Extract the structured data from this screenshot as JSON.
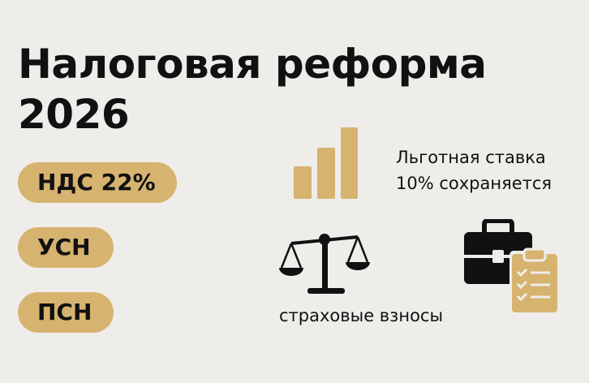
{
  "title_line1": "Налоговая реформа",
  "title_line2": "2026",
  "pills": [
    "НДС 22%",
    "УСН",
    "ПСН"
  ],
  "benefit_line1": "Льготная ставка",
  "benefit_line2": "10% сохраняется",
  "insurance_label": "страховые взносы",
  "colors": {
    "background": "#efedea",
    "accent": "#d6b36f",
    "ink": "#111111"
  },
  "icons": [
    "bar-chart-icon",
    "scales-icon",
    "briefcase-icon",
    "clipboard-checklist-icon"
  ]
}
